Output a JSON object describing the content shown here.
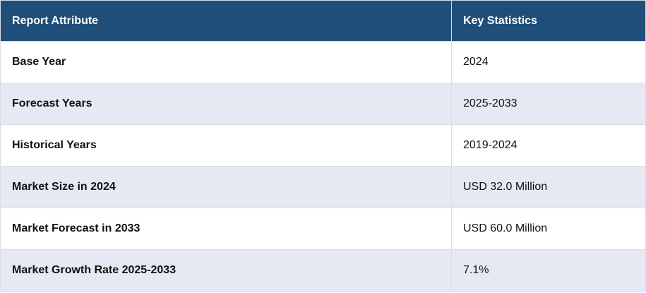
{
  "table": {
    "headers": {
      "attribute": "Report Attribute",
      "statistics": "Key Statistics"
    },
    "rows": [
      {
        "attribute": "Base Year",
        "value": "2024"
      },
      {
        "attribute": "Forecast Years",
        "value": "2025-2033"
      },
      {
        "attribute": "Historical Years",
        "value": "2019-2024"
      },
      {
        "attribute": "Market Size in 2024",
        "value": "USD 32.0 Million"
      },
      {
        "attribute": "Market Forecast in 2033",
        "value": "USD 60.0 Million"
      },
      {
        "attribute": "Market Growth Rate 2025-2033",
        "value": "7.1%"
      }
    ]
  },
  "colors": {
    "header_bg": "#1f4e79",
    "header_text": "#ffffff",
    "stripe_bg": "#e6e9f4",
    "row_bg": "#ffffff"
  }
}
